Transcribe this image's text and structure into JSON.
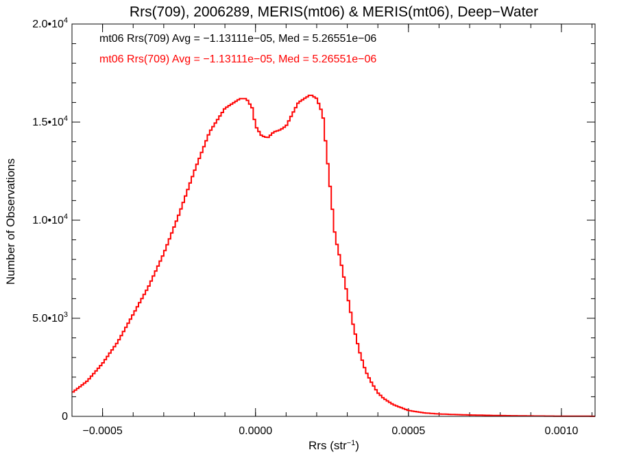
{
  "chart_data": {
    "type": "histogram-step",
    "title": "Rrs(709), 2006289, MERIS(mt06) & MERIS(mt06), Deep−Water",
    "xlabel": "Rrs (str",
    "xlabel_sup": "−1",
    "xlabel_tail": ")",
    "ylabel": "Number of Observations",
    "xlim": [
      -0.0006,
      0.00111
    ],
    "ylim": [
      0,
      20000
    ],
    "x_ticks": [
      {
        "value": -0.0005,
        "label": "−0.0005"
      },
      {
        "value": 0.0,
        "label": "0.0000"
      },
      {
        "value": 0.0005,
        "label": "0.0005"
      },
      {
        "value": 0.001,
        "label": "0.0010"
      }
    ],
    "y_ticks": [
      {
        "value": 0,
        "label": "0",
        "sup": ""
      },
      {
        "value": 5000,
        "label": "5.0•10",
        "sup": "3"
      },
      {
        "value": 10000,
        "label": "1.0•10",
        "sup": "4"
      },
      {
        "value": 15000,
        "label": "1.5•10",
        "sup": "4"
      },
      {
        "value": 20000,
        "label": "2.0•10",
        "sup": "4"
      }
    ],
    "x_minor_step": 0.0001,
    "y_minor_step": 1000,
    "annotations": [
      {
        "text": "mt06 Rrs(709) Avg = −1.13111e−05, Med = 5.26551e−06",
        "color": "#000000"
      },
      {
        "text": "mt06 Rrs(709) Avg = −1.13111e−05, Med = 5.26551e−06",
        "color": "#ff0000"
      }
    ],
    "series": [
      {
        "color": "#ff0000",
        "x": [
          -0.0006,
          -0.00055,
          -0.0005,
          -0.00045,
          -0.0004,
          -0.00035,
          -0.0003,
          -0.00025,
          -0.0002,
          -0.00015,
          -0.0001,
          -7e-05,
          -5e-05,
          -3e-05,
          -1e-05,
          0.0,
          2e-05,
          4e-05,
          6e-05,
          8e-05,
          0.0001,
          0.00012,
          0.00014,
          0.00016,
          0.00018,
          0.0002,
          0.00022,
          0.00024,
          0.00026,
          0.00028,
          0.0003,
          0.00032,
          0.00034,
          0.00036,
          0.00038,
          0.0004,
          0.00042,
          0.00045,
          0.0005,
          0.00055,
          0.0006,
          0.0007,
          0.0008,
          0.0009,
          0.001,
          0.0011
        ],
        "y": [
          1200,
          1800,
          2700,
          3800,
          5200,
          6600,
          8300,
          10300,
          12500,
          14500,
          15700,
          16000,
          16200,
          16200,
          15700,
          14800,
          14300,
          14200,
          14500,
          14600,
          14800,
          15400,
          16000,
          16200,
          16400,
          16200,
          15400,
          12300,
          9200,
          7800,
          6200,
          4600,
          3300,
          2300,
          1700,
          1200,
          900,
          600,
          300,
          180,
          120,
          70,
          40,
          20,
          10,
          5
        ]
      }
    ]
  }
}
